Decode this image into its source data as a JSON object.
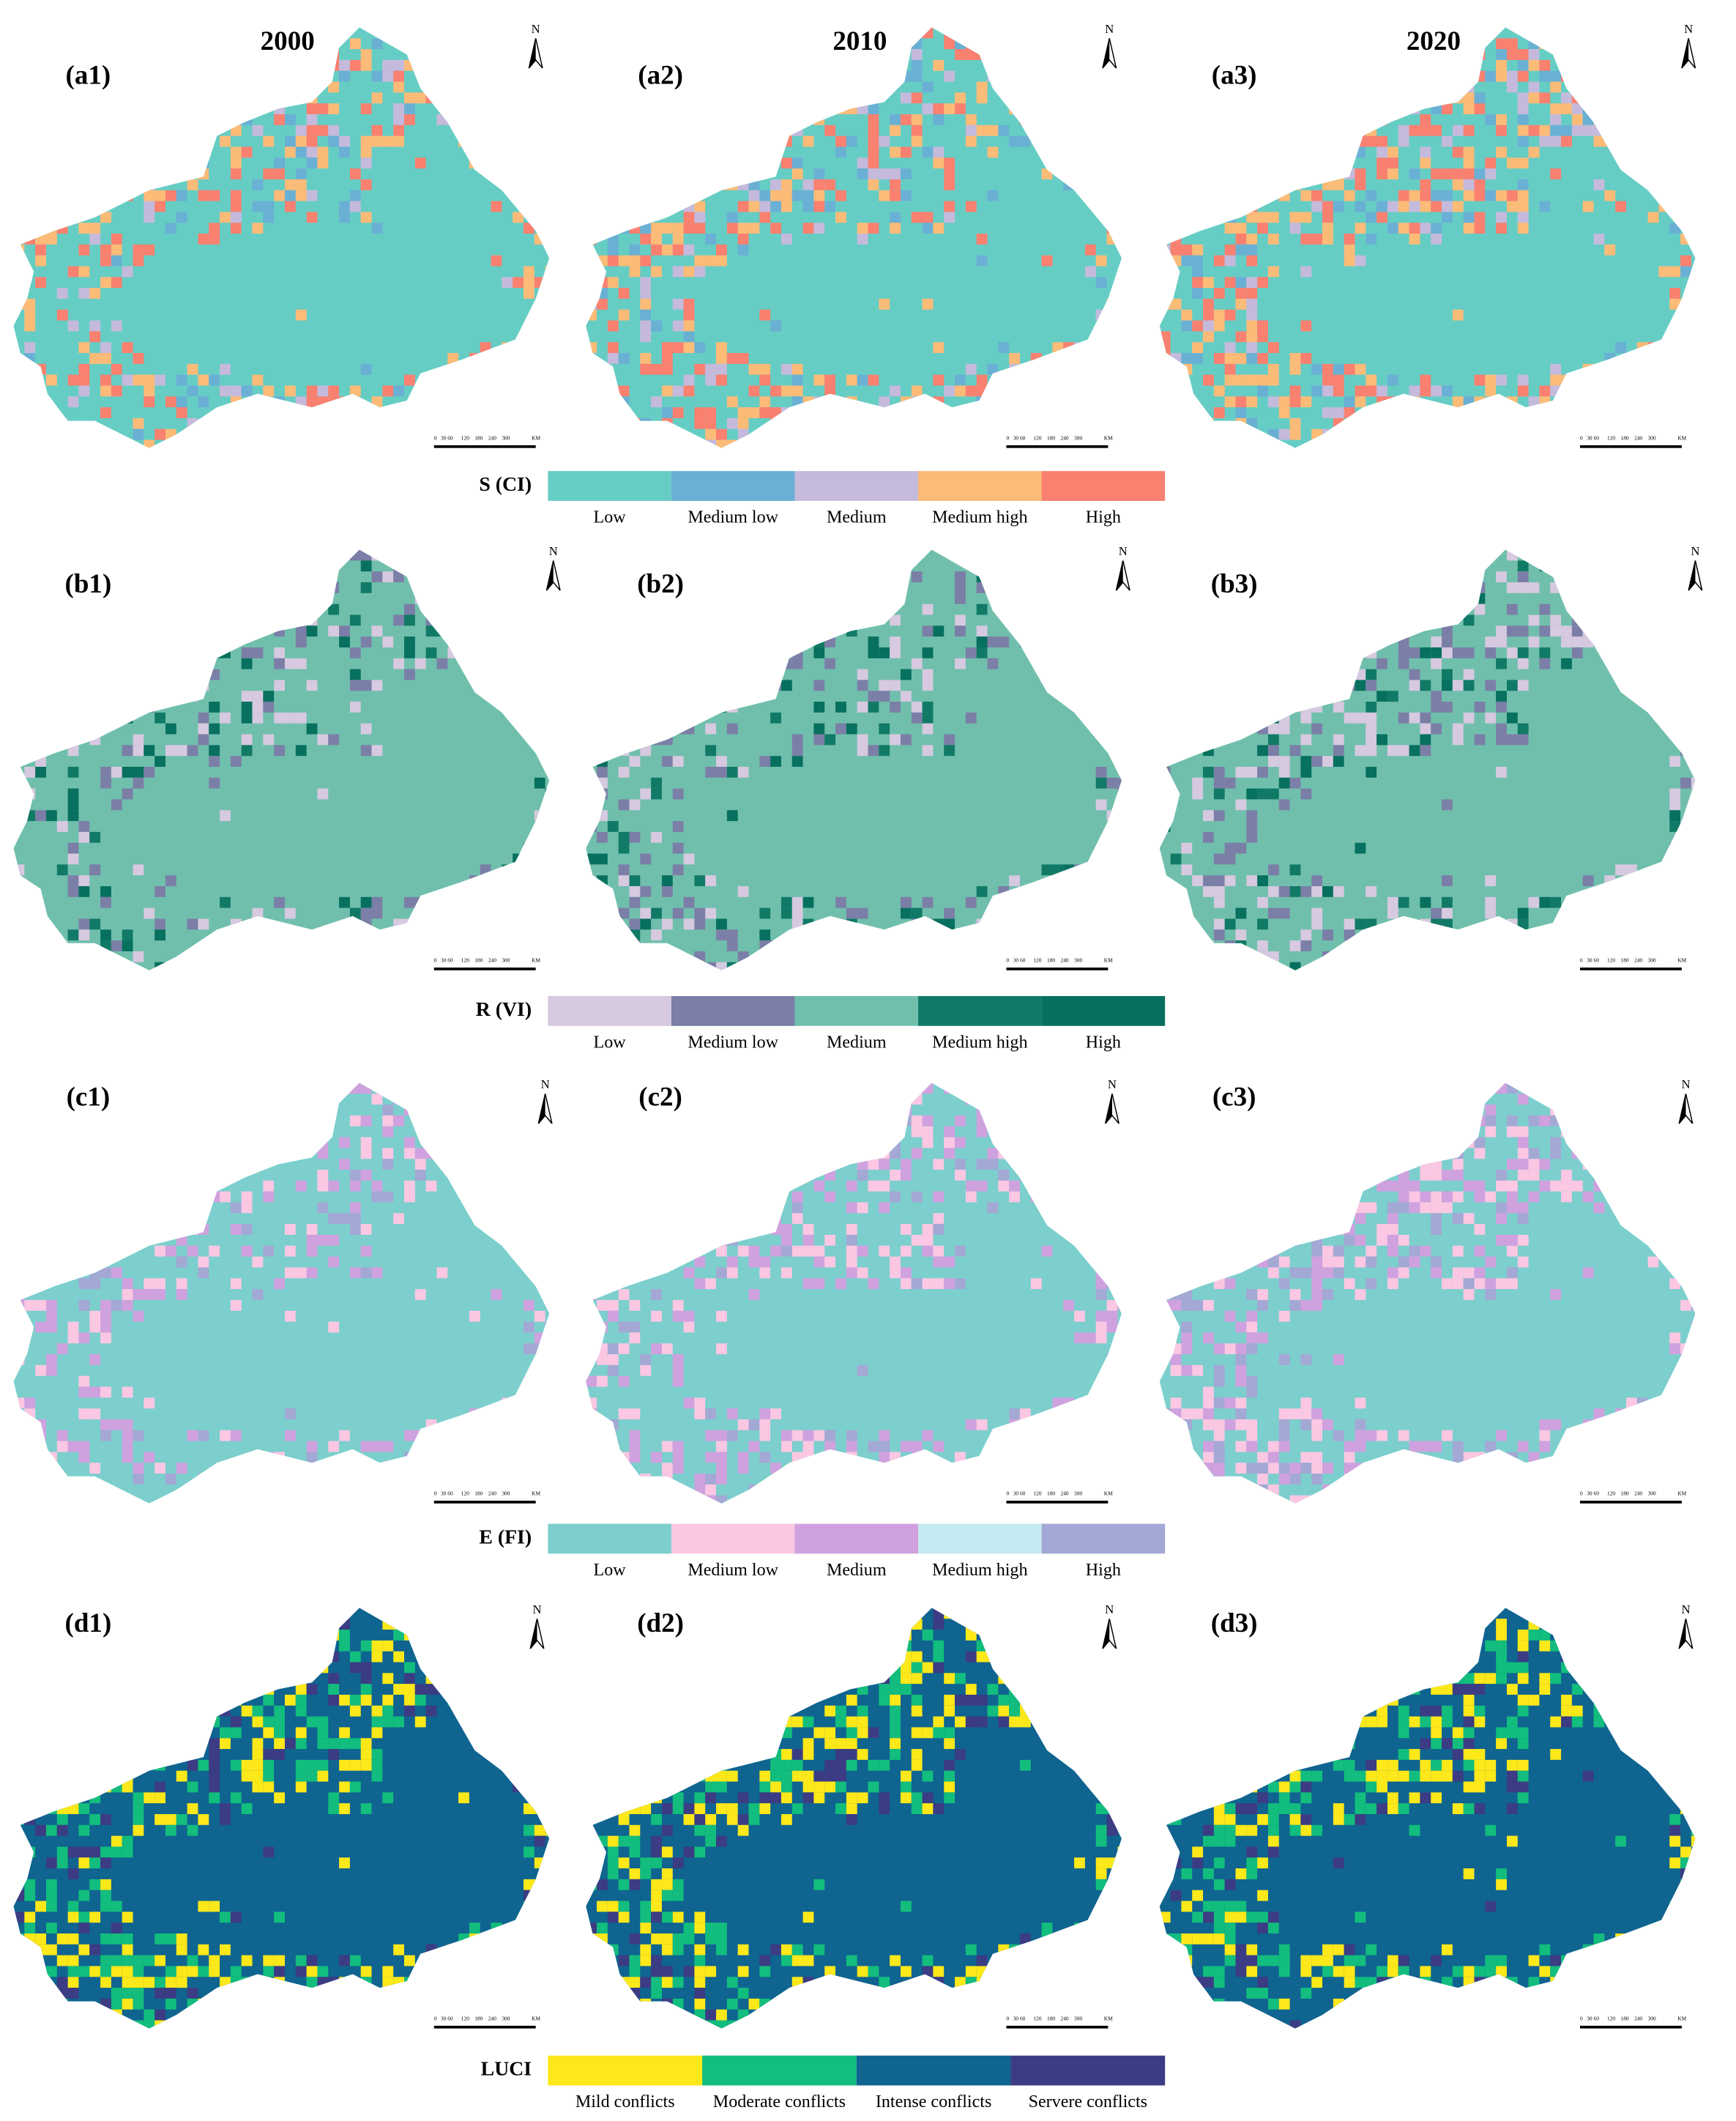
{
  "columns": [
    "2000",
    "2010",
    "2020"
  ],
  "north": "N",
  "scale_bar": [
    "0",
    "30",
    "60",
    "120",
    "180",
    "240",
    "300",
    "KM"
  ],
  "rows": [
    {
      "panels": [
        "(a1)",
        "(a2)",
        "(a3)"
      ],
      "legend": {
        "title": "S (CI)",
        "items": [
          {
            "label": "Low",
            "color": "#66cdc4"
          },
          {
            "label": "Medium low",
            "color": "#6ab0d4"
          },
          {
            "label": "Medium",
            "color": "#c5badc"
          },
          {
            "label": "Medium high",
            "color": "#fdbb78"
          },
          {
            "label": "High",
            "color": "#fa8070"
          }
        ]
      }
    },
    {
      "panels": [
        "(b1)",
        "(b2)",
        "(b3)"
      ],
      "legend": {
        "title": "R (VI)",
        "items": [
          {
            "label": "Low",
            "color": "#d6c9e0"
          },
          {
            "label": "Medium low",
            "color": "#7b7fa7"
          },
          {
            "label": "Medium",
            "color": "#70bfac"
          },
          {
            "label": "Medium high",
            "color": "#117a66"
          },
          {
            "label": "High",
            "color": "#07705e"
          }
        ]
      }
    },
    {
      "panels": [
        "(c1)",
        "(c2)",
        "(c3)"
      ],
      "legend": {
        "title": "E (FI)",
        "items": [
          {
            "label": "Low",
            "color": "#7ccfcd"
          },
          {
            "label": "Medium low",
            "color": "#fbc7e3"
          },
          {
            "label": "Medium",
            "color": "#d0a1df"
          },
          {
            "label": "Medium high",
            "color": "#c6eaf1"
          },
          {
            "label": "High",
            "color": "#a3a8d4"
          }
        ]
      }
    },
    {
      "panels": [
        "(d1)",
        "(d2)",
        "(d3)"
      ],
      "legend": {
        "title": "LUCI",
        "items": [
          {
            "label": "Mild conflicts",
            "color": "#fde81a"
          },
          {
            "label": "Moderate conflicts",
            "color": "#12bd7d"
          },
          {
            "label": "Intense conflicts",
            "color": "#0f6490"
          },
          {
            "label": "Servere conflicts",
            "color": "#3b3c83"
          }
        ]
      }
    }
  ]
}
